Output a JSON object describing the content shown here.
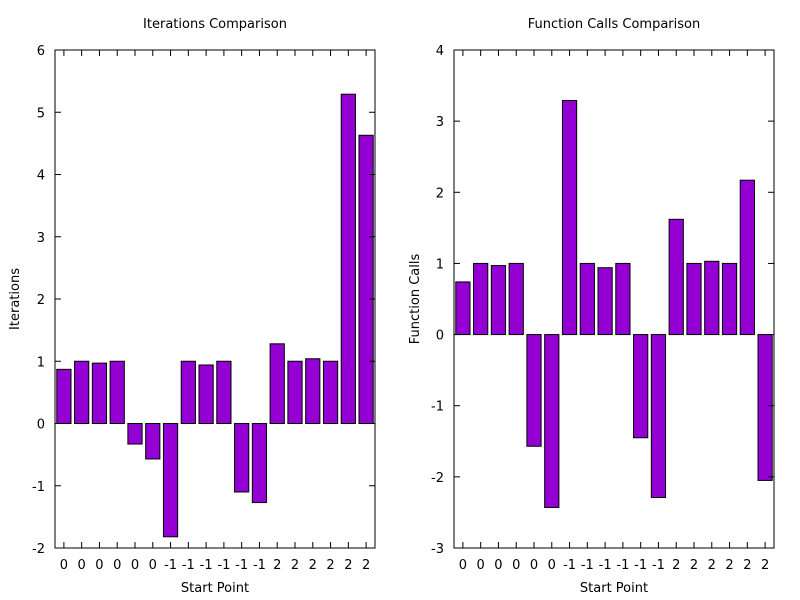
{
  "chart_data": [
    {
      "type": "bar",
      "title": "Iterations Comparison",
      "xlabel": "Start Point",
      "ylabel": "Iterations",
      "categories": [
        "0",
        "0",
        "0",
        "0",
        "0",
        "0",
        "-1",
        "-1",
        "-1",
        "-1",
        "-1",
        "-1",
        "2",
        "2",
        "2",
        "2",
        "2",
        "2"
      ],
      "values": [
        0.87,
        1.0,
        0.97,
        1.0,
        -0.33,
        -0.57,
        -1.82,
        1.0,
        0.94,
        1.0,
        -1.1,
        -1.27,
        1.28,
        1.0,
        1.04,
        1.0,
        5.29,
        4.63
      ],
      "ylim": [
        -2,
        6
      ],
      "yticks": [
        -2,
        -1,
        0,
        1,
        2,
        3,
        4,
        5,
        6
      ],
      "grid": false,
      "bar_color": "#9400d3"
    },
    {
      "type": "bar",
      "title": "Function Calls Comparison",
      "xlabel": "Start Point",
      "ylabel": "Function Calls",
      "categories": [
        "0",
        "0",
        "0",
        "0",
        "0",
        "0",
        "-1",
        "-1",
        "-1",
        "-1",
        "-1",
        "-1",
        "2",
        "2",
        "2",
        "2",
        "2",
        "2"
      ],
      "values": [
        0.74,
        1.0,
        0.97,
        1.0,
        -1.57,
        -2.43,
        3.29,
        1.0,
        0.94,
        1.0,
        -1.45,
        -2.29,
        1.62,
        1.0,
        1.03,
        1.0,
        2.17,
        -2.05
      ],
      "ylim": [
        -3,
        4
      ],
      "yticks": [
        -3,
        -2,
        -1,
        0,
        1,
        2,
        3,
        4
      ],
      "grid": false,
      "bar_color": "#9400d3"
    }
  ]
}
